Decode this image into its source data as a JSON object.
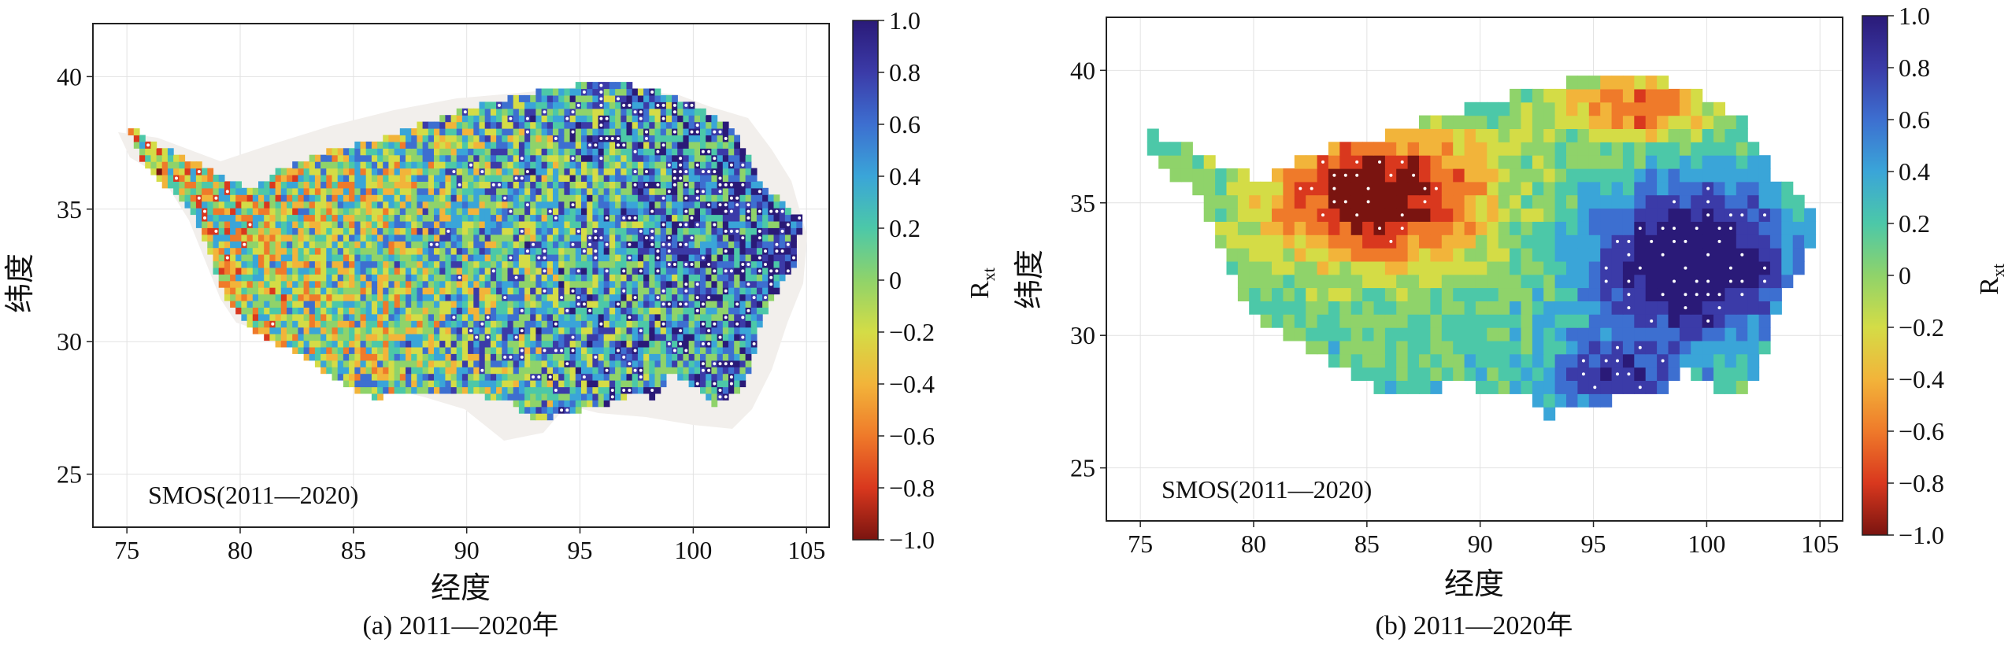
{
  "panels": [
    {
      "id": "a",
      "caption": "(a) 2011—2020年",
      "annotation": "SMOS(2011—2020)",
      "xlabel": "经度",
      "ylabel": "纬度",
      "x_ticks": [
        "75",
        "80",
        "85",
        "90",
        "95",
        "100",
        "105"
      ],
      "y_ticks": [
        "40",
        "35",
        "30",
        "25"
      ],
      "xlim": [
        73.5,
        106
      ],
      "ylim": [
        23,
        42
      ],
      "colorbar": {
        "label": "R",
        "label_sub": "xt",
        "ticks": [
          "1.0",
          "0.8",
          "0.6",
          "0.4",
          "0.2",
          "0",
          "−0.2",
          "−0.4",
          "−0.6",
          "−0.8",
          "−1.0"
        ]
      },
      "pattern": "noisy"
    },
    {
      "id": "b",
      "caption": "(b) 2011—2020年",
      "annotation": "SMOS(2011—2020)",
      "xlabel": "经度",
      "ylabel": "纬度",
      "x_ticks": [
        "75",
        "80",
        "85",
        "90",
        "95",
        "100",
        "105"
      ],
      "y_ticks": [
        "40",
        "35",
        "30",
        "25"
      ],
      "xlim": [
        73.5,
        106
      ],
      "ylim": [
        23,
        42
      ],
      "colorbar": {
        "label": "R",
        "label_sub": "xt",
        "ticks": [
          "1.0",
          "0.8",
          "0.6",
          "0.4",
          "0.2",
          "0",
          "−0.2",
          "−0.4",
          "−0.6",
          "−0.8",
          "−1.0"
        ]
      },
      "pattern": "smooth"
    }
  ],
  "colormap": [
    "#2a1a78",
    "#3b3ba8",
    "#3d6fd0",
    "#3aa5d8",
    "#4cc8a8",
    "#8fd36a",
    "#d4dc46",
    "#f2b43a",
    "#ef7a2a",
    "#d9381e",
    "#7a1410"
  ],
  "land_mask_color": "#f2efec"
}
